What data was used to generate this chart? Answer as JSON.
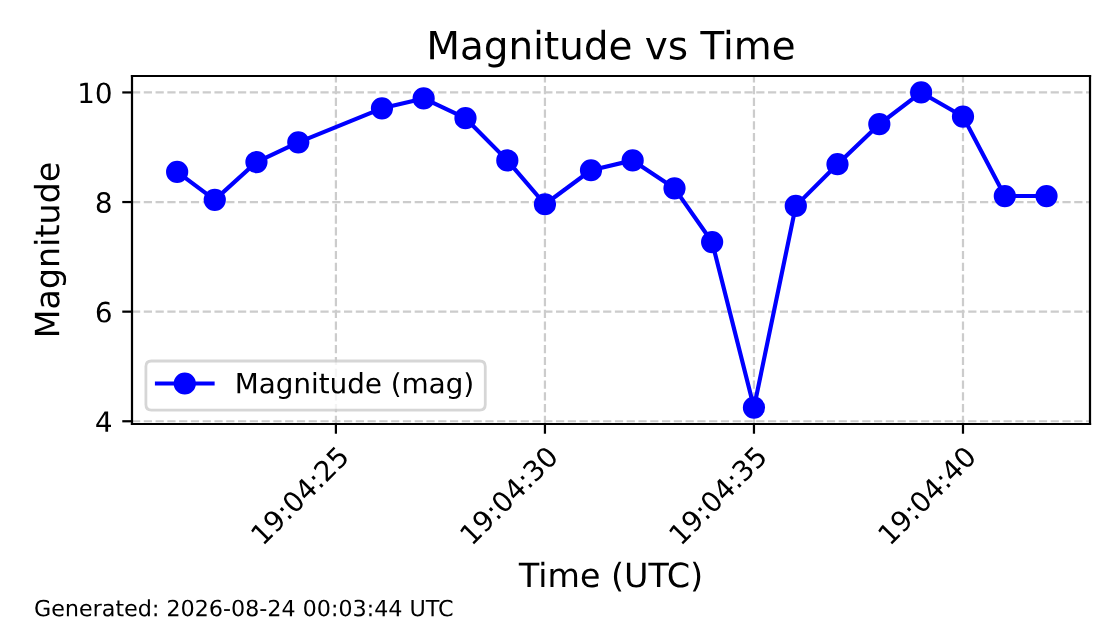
{
  "chart_data": {
    "type": "line",
    "title": "Magnitude vs Time",
    "xlabel": "Time (UTC)",
    "ylabel": "Magnitude",
    "x": [
      19.072556,
      19.072806,
      19.073083,
      19.073361,
      19.073917,
      19.074194,
      19.074472,
      19.07475,
      19.075,
      19.075306,
      19.075583,
      19.075861,
      19.076111,
      19.076389,
      19.076667,
      19.076944,
      19.077222,
      19.0775,
      19.077778,
      19.078056,
      19.078333
    ],
    "series": [
      {
        "name": "Magnitude (mag)",
        "color": "#0000ff",
        "values": [
          8.55,
          8.04,
          8.73,
          9.09,
          9.71,
          9.89,
          9.53,
          8.76,
          7.96,
          8.58,
          8.76,
          8.25,
          7.27,
          4.25,
          7.93,
          8.69,
          9.42,
          10.0,
          9.56,
          8.11,
          8.11
        ]
      }
    ],
    "xlim": [
      19.072256,
      19.078622
    ],
    "xticks": [
      {
        "value": 19.073611,
        "label": "19:04:25"
      },
      {
        "value": 19.075,
        "label": "19:04:30"
      },
      {
        "value": 19.076389,
        "label": "19:04:35"
      },
      {
        "value": 19.077778,
        "label": "19:04:40"
      }
    ],
    "ylim": [
      3.95,
      10.3
    ],
    "yticks": [
      4,
      6,
      8,
      10
    ],
    "grid": true,
    "legend": "lower left",
    "marker": "circle",
    "line_style": "solid",
    "annotations": [
      "Generated: 2026-08-24 00:03:44 UTC"
    ]
  }
}
